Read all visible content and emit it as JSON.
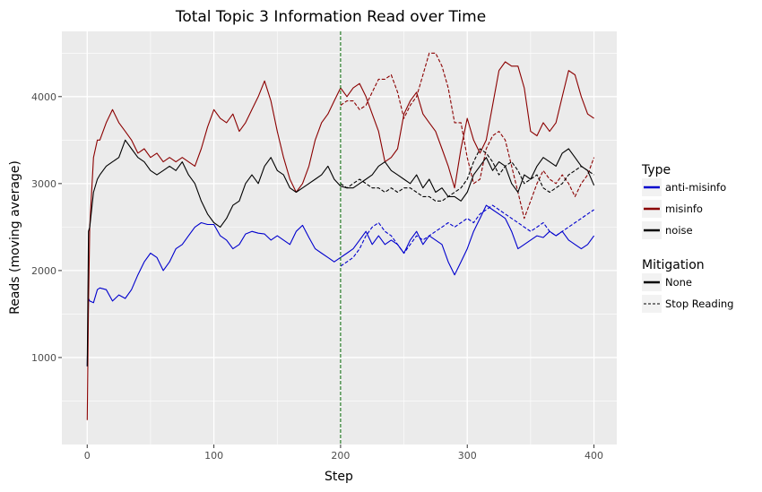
{
  "chart_data": {
    "type": "line",
    "title": "Total Topic 3 Information Read over Time",
    "xlabel": "Step",
    "ylabel": "Reads (moving average)",
    "xlim": [
      -20,
      418
    ],
    "ylim": [
      0,
      4750
    ],
    "xticks": [
      0,
      100,
      200,
      300,
      400
    ],
    "yticks": [
      1000,
      2000,
      3000,
      4000
    ],
    "grid": true,
    "vline": {
      "x": 200,
      "color": "#006400",
      "style": "dashed"
    },
    "legend": {
      "placement": "right",
      "type_title": "Type",
      "type_entries": [
        {
          "label": "anti-misinfo",
          "color": "#0000cd"
        },
        {
          "label": "misinfo",
          "color": "#8b0000"
        },
        {
          "label": "noise",
          "color": "#000000"
        }
      ],
      "mitigation_title": "Mitigation",
      "mitigation_entries": [
        {
          "label": "None",
          "style": "solid"
        },
        {
          "label": "Stop Reading",
          "style": "dashed"
        }
      ]
    },
    "series": [
      {
        "type": "anti-misinfo",
        "mitigation": "None",
        "color": "#0000cd",
        "style": "solid",
        "x": [
          0,
          1,
          2,
          5,
          8,
          10,
          15,
          20,
          25,
          30,
          35,
          40,
          45,
          50,
          55,
          60,
          65,
          70,
          75,
          80,
          85,
          90,
          95,
          100,
          105,
          110,
          115,
          120,
          125,
          130,
          135,
          140,
          145,
          150,
          155,
          160,
          165,
          170,
          175,
          180,
          185,
          190,
          195,
          200,
          205,
          210,
          215,
          220,
          225,
          230,
          235,
          240,
          245,
          250,
          255,
          260,
          265,
          270,
          275,
          280,
          285,
          290,
          295,
          300,
          305,
          310,
          315,
          320,
          325,
          330,
          335,
          340,
          345,
          350,
          355,
          360,
          365,
          370,
          375,
          380,
          385,
          390,
          395,
          400
        ],
        "y": [
          900,
          1680,
          1650,
          1630,
          1780,
          1800,
          1780,
          1650,
          1720,
          1680,
          1780,
          1950,
          2100,
          2200,
          2150,
          2000,
          2100,
          2250,
          2300,
          2400,
          2500,
          2550,
          2530,
          2530,
          2400,
          2350,
          2250,
          2300,
          2420,
          2450,
          2430,
          2420,
          2350,
          2400,
          2350,
          2300,
          2450,
          2520,
          2380,
          2250,
          2200,
          2150,
          2100,
          2150,
          2200,
          2250,
          2350,
          2450,
          2300,
          2400,
          2300,
          2350,
          2300,
          2200,
          2350,
          2450,
          2300,
          2400,
          2350,
          2300,
          2100,
          1950,
          2100,
          2250,
          2450,
          2600,
          2750,
          2700,
          2650,
          2600,
          2450,
          2250,
          2300,
          2350,
          2400,
          2380,
          2450,
          2400,
          2450,
          2350,
          2300,
          2250,
          2300,
          2400
        ]
      },
      {
        "type": "anti-misinfo",
        "mitigation": "Stop Reading",
        "color": "#0000cd",
        "style": "dashed",
        "x": [
          200,
          205,
          210,
          215,
          220,
          225,
          230,
          235,
          240,
          245,
          250,
          255,
          260,
          265,
          270,
          275,
          280,
          285,
          290,
          295,
          300,
          305,
          310,
          315,
          320,
          325,
          330,
          335,
          340,
          345,
          350,
          355,
          360,
          365,
          370,
          375,
          380,
          385,
          390,
          395,
          400
        ],
        "y": [
          2050,
          2100,
          2150,
          2250,
          2400,
          2500,
          2550,
          2450,
          2400,
          2300,
          2200,
          2300,
          2400,
          2350,
          2400,
          2450,
          2500,
          2550,
          2500,
          2550,
          2600,
          2550,
          2650,
          2700,
          2750,
          2700,
          2650,
          2600,
          2550,
          2500,
          2450,
          2500,
          2550,
          2450,
          2400,
          2450,
          2500,
          2550,
          2600,
          2650,
          2700
        ]
      },
      {
        "type": "misinfo",
        "mitigation": "None",
        "color": "#8b0000",
        "style": "solid",
        "x": [
          0,
          1,
          2,
          5,
          8,
          10,
          15,
          20,
          25,
          30,
          35,
          40,
          45,
          50,
          55,
          60,
          65,
          70,
          75,
          80,
          85,
          90,
          95,
          100,
          105,
          110,
          115,
          120,
          125,
          130,
          135,
          140,
          145,
          150,
          155,
          160,
          165,
          170,
          175,
          180,
          185,
          190,
          195,
          200,
          205,
          210,
          215,
          220,
          225,
          230,
          235,
          240,
          245,
          250,
          255,
          260,
          265,
          270,
          275,
          280,
          285,
          290,
          295,
          300,
          305,
          310,
          315,
          320,
          325,
          330,
          335,
          340,
          345,
          350,
          355,
          360,
          365,
          370,
          375,
          380,
          385,
          390,
          395,
          400
        ],
        "y": [
          280,
          1600,
          2500,
          3300,
          3500,
          3500,
          3700,
          3850,
          3700,
          3600,
          3500,
          3350,
          3400,
          3300,
          3350,
          3250,
          3300,
          3250,
          3300,
          3250,
          3200,
          3400,
          3650,
          3850,
          3750,
          3700,
          3800,
          3600,
          3700,
          3850,
          4000,
          4180,
          3950,
          3600,
          3300,
          3050,
          2900,
          3000,
          3200,
          3500,
          3700,
          3800,
          3950,
          4100,
          4000,
          4100,
          4150,
          4000,
          3800,
          3600,
          3250,
          3300,
          3400,
          3800,
          3950,
          4050,
          3800,
          3700,
          3600,
          3400,
          3200,
          2950,
          3400,
          3750,
          3500,
          3350,
          3500,
          3900,
          4300,
          4400,
          4350,
          4350,
          4100,
          3600,
          3550,
          3700,
          3600,
          3700,
          4000,
          4300,
          4250,
          4000,
          3800,
          3750
        ]
      },
      {
        "type": "misinfo",
        "mitigation": "Stop Reading",
        "color": "#8b0000",
        "style": "dashed",
        "x": [
          200,
          205,
          210,
          215,
          220,
          225,
          230,
          235,
          240,
          245,
          250,
          255,
          260,
          265,
          270,
          275,
          280,
          285,
          290,
          295,
          300,
          305,
          310,
          315,
          320,
          325,
          330,
          335,
          340,
          345,
          350,
          355,
          360,
          365,
          370,
          375,
          380,
          385,
          390,
          395,
          400
        ],
        "y": [
          3900,
          3950,
          3950,
          3850,
          3900,
          4050,
          4200,
          4200,
          4250,
          4050,
          3750,
          3900,
          4000,
          4250,
          4500,
          4500,
          4350,
          4100,
          3700,
          3700,
          3300,
          3000,
          3050,
          3400,
          3550,
          3600,
          3500,
          3200,
          2900,
          2600,
          2800,
          3000,
          3150,
          3050,
          3000,
          3100,
          3000,
          2850,
          3000,
          3100,
          3300
        ]
      },
      {
        "type": "noise",
        "mitigation": "None",
        "color": "#000000",
        "style": "solid",
        "x": [
          0,
          1,
          2,
          5,
          8,
          10,
          15,
          20,
          25,
          30,
          35,
          40,
          45,
          50,
          55,
          60,
          65,
          70,
          75,
          80,
          85,
          90,
          95,
          100,
          105,
          110,
          115,
          120,
          125,
          130,
          135,
          140,
          145,
          150,
          155,
          160,
          165,
          170,
          175,
          180,
          185,
          190,
          195,
          200,
          205,
          210,
          215,
          220,
          225,
          230,
          235,
          240,
          245,
          250,
          255,
          260,
          265,
          270,
          275,
          280,
          285,
          290,
          295,
          300,
          305,
          310,
          315,
          320,
          325,
          330,
          335,
          340,
          345,
          350,
          355,
          360,
          365,
          370,
          375,
          380,
          385,
          390,
          395,
          400
        ],
        "y": [
          900,
          2450,
          2500,
          2900,
          3050,
          3100,
          3200,
          3250,
          3300,
          3500,
          3400,
          3300,
          3250,
          3150,
          3100,
          3150,
          3200,
          3150,
          3250,
          3100,
          3000,
          2800,
          2650,
          2550,
          2500,
          2600,
          2750,
          2800,
          3000,
          3100,
          3000,
          3200,
          3300,
          3150,
          3100,
          2950,
          2900,
          2950,
          3000,
          3050,
          3100,
          3200,
          3050,
          2970,
          2950,
          2950,
          3000,
          3050,
          3100,
          3200,
          3250,
          3150,
          3100,
          3050,
          3000,
          3100,
          2950,
          3050,
          2900,
          2950,
          2850,
          2850,
          2800,
          2900,
          3100,
          3200,
          3300,
          3150,
          3250,
          3200,
          3000,
          2900,
          3100,
          3050,
          3200,
          3300,
          3250,
          3200,
          3350,
          3400,
          3300,
          3200,
          3150,
          2980
        ]
      },
      {
        "type": "noise",
        "mitigation": "Stop Reading",
        "color": "#000000",
        "style": "dashed",
        "x": [
          200,
          205,
          210,
          215,
          220,
          225,
          230,
          235,
          240,
          245,
          250,
          255,
          260,
          265,
          270,
          275,
          280,
          285,
          290,
          295,
          300,
          305,
          310,
          315,
          320,
          325,
          330,
          335,
          340,
          345,
          350,
          355,
          360,
          365,
          370,
          375,
          380,
          385,
          390,
          395,
          400
        ],
        "y": [
          3000,
          2950,
          3000,
          3050,
          3000,
          2950,
          2950,
          2900,
          2950,
          2900,
          2950,
          2950,
          2900,
          2850,
          2850,
          2800,
          2800,
          2850,
          2900,
          2950,
          3050,
          3250,
          3400,
          3350,
          3250,
          3100,
          3200,
          3250,
          3150,
          3000,
          3050,
          3100,
          2950,
          2900,
          2950,
          3000,
          3100,
          3150,
          3200,
          3150,
          3100
        ]
      }
    ]
  }
}
